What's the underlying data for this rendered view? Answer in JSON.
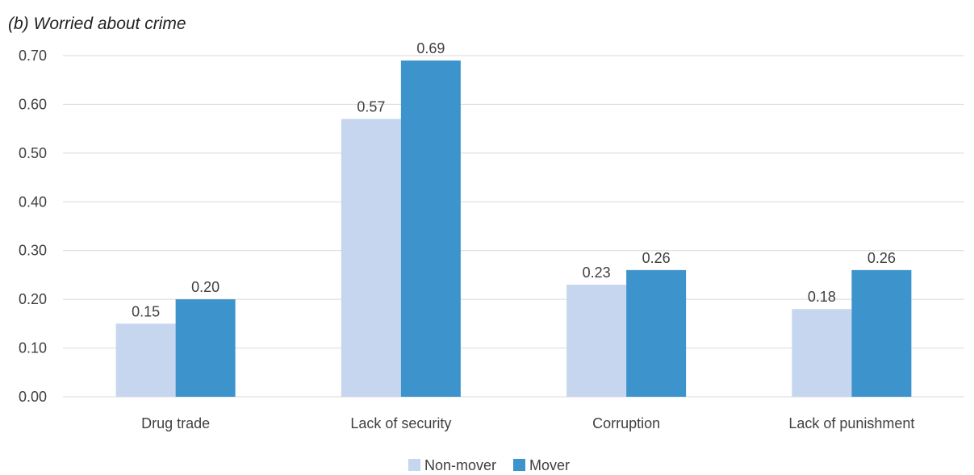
{
  "chart_data": {
    "type": "bar",
    "title": "(b)   Worried about crime",
    "categories": [
      "Drug trade",
      "Lack of security",
      "Corruption",
      "Lack of punishment"
    ],
    "series": [
      {
        "name": "Non-mover",
        "values": [
          0.15,
          0.57,
          0.23,
          0.18
        ],
        "labels": [
          "0.15",
          "0.57",
          "0.23",
          "0.18"
        ],
        "color": "#c5d6ee"
      },
      {
        "name": "Mover",
        "values": [
          0.2,
          0.69,
          0.26,
          0.26
        ],
        "labels": [
          "0.20",
          "0.69",
          "0.26",
          "0.26"
        ],
        "color": "#3d94cc"
      }
    ],
    "y_ticks": [
      "0.00",
      "0.10",
      "0.20",
      "0.30",
      "0.40",
      "0.50",
      "0.60",
      "0.70"
    ],
    "ylim": [
      0,
      0.7
    ],
    "xlabel": "",
    "ylabel": "",
    "grid": true,
    "legend_position": "bottom"
  }
}
